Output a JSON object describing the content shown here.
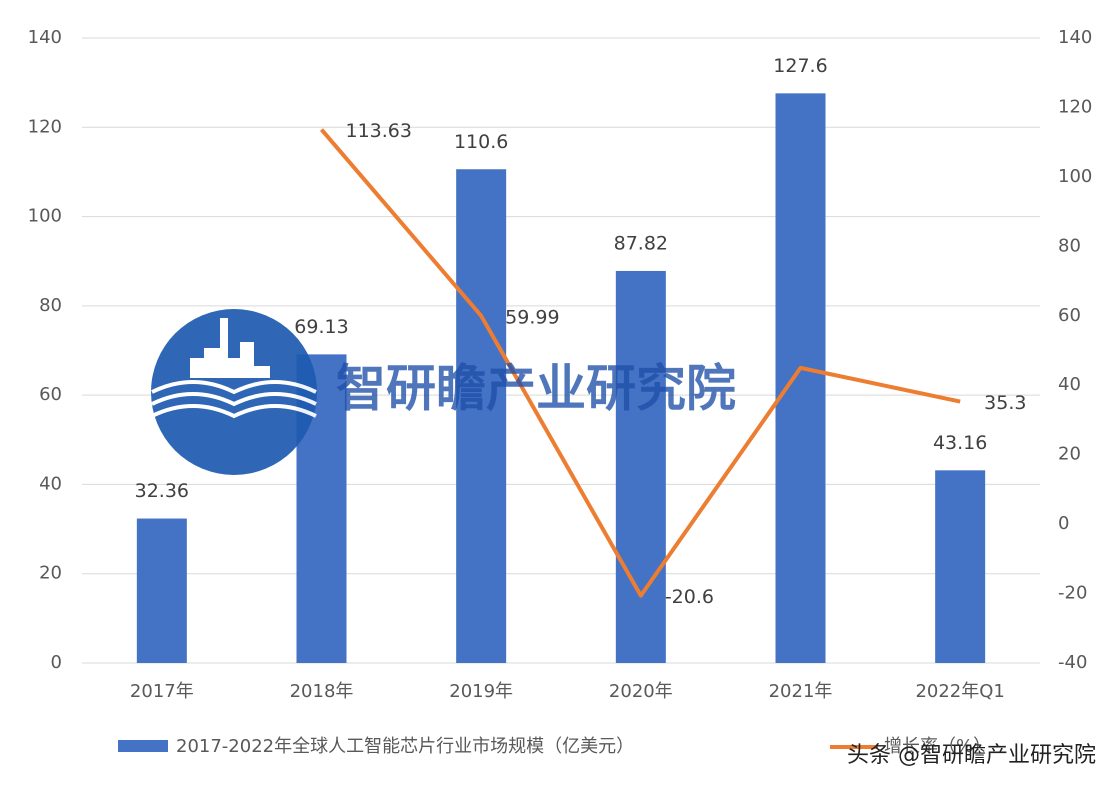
{
  "chart_data": {
    "type": "bar_line",
    "categories": [
      "2017年",
      "2018年",
      "2019年",
      "2020年",
      "2021年",
      "2022年Q1"
    ],
    "series": [
      {
        "name": "2017-2022年全球人工智能芯片行业市场规模（亿美元）",
        "color": "#4472c4",
        "type": "bar",
        "values": [
          32.36,
          69.13,
          110.6,
          87.82,
          127.6,
          43.16
        ]
      },
      {
        "name": "增长率（%）",
        "color": "#ed7d31",
        "type": "line",
        "axis": "y2",
        "values": [
          null,
          113.63,
          59.99,
          -20.6,
          45,
          35.3
        ],
        "value_labels": [
          null,
          "113.63",
          "59.99",
          "-20.6",
          null,
          "35.3"
        ]
      }
    ],
    "ylim": [
      0,
      140
    ],
    "yticks": [
      0,
      20,
      40,
      60,
      80,
      100,
      120,
      140
    ],
    "y2lim": [
      -40,
      140
    ],
    "y2ticks": [
      -40,
      -20,
      0,
      20,
      40,
      60,
      80,
      100,
      120,
      140
    ],
    "grid": true,
    "legend": "bottom",
    "annotations": [
      "智研瞻产业研究院",
      "头条 @智研瞻产业研究院"
    ]
  }
}
